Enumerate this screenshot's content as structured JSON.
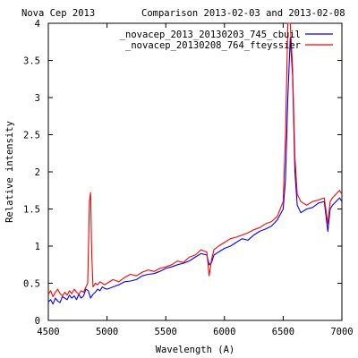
{
  "chart_data": {
    "type": "line",
    "title_left": "Nova Cep 2013",
    "title_right": "Comparison 2013-02-03 and  2013-02-08",
    "xlabel": "Wavelength (A)",
    "ylabel": "Relative intensity",
    "xlim": [
      4500,
      7000
    ],
    "ylim": [
      0,
      4
    ],
    "x_ticks": [
      4500,
      5000,
      5500,
      6000,
      6500,
      7000
    ],
    "x_tick_labels": [
      "4500",
      "5000",
      "5500",
      "6000",
      "6500",
      "7000"
    ],
    "y_ticks": [
      0,
      0.5,
      1,
      1.5,
      2,
      2.5,
      3,
      3.5,
      4
    ],
    "y_tick_labels": [
      "0",
      "0.5",
      "1",
      "1.5",
      "2",
      "2.5",
      "3",
      "3.5",
      "4"
    ],
    "grid": false,
    "legend_position": "top-right",
    "series": [
      {
        "name": "_novacep_2013_20130203_745_cbuil",
        "color": "#0000ff",
        "x": [
          4500,
          4520,
          4540,
          4560,
          4580,
          4600,
          4620,
          4640,
          4660,
          4680,
          4700,
          4720,
          4740,
          4760,
          4780,
          4800,
          4820,
          4840,
          4860,
          4880,
          4900,
          4920,
          4940,
          4960,
          4980,
          5000,
          5050,
          5100,
          5150,
          5200,
          5250,
          5300,
          5350,
          5400,
          5450,
          5500,
          5550,
          5600,
          5650,
          5700,
          5750,
          5800,
          5850,
          5870,
          5890,
          5910,
          5950,
          6000,
          6050,
          6100,
          6150,
          6200,
          6250,
          6300,
          6350,
          6400,
          6450,
          6500,
          6520,
          6540,
          6560,
          6580,
          6600,
          6620,
          6650,
          6700,
          6750,
          6800,
          6850,
          6880,
          6900,
          6920,
          6950,
          6980,
          7000
        ],
        "y": [
          0.25,
          0.28,
          0.22,
          0.3,
          0.26,
          0.24,
          0.32,
          0.3,
          0.28,
          0.34,
          0.3,
          0.33,
          0.28,
          0.35,
          0.3,
          0.33,
          0.42,
          0.4,
          0.3,
          0.35,
          0.38,
          0.42,
          0.4,
          0.45,
          0.43,
          0.42,
          0.45,
          0.48,
          0.52,
          0.53,
          0.55,
          0.6,
          0.62,
          0.63,
          0.66,
          0.7,
          0.72,
          0.75,
          0.77,
          0.8,
          0.85,
          0.9,
          0.88,
          0.75,
          0.78,
          0.88,
          0.92,
          0.97,
          1.0,
          1.05,
          1.1,
          1.08,
          1.15,
          1.2,
          1.23,
          1.27,
          1.35,
          1.5,
          1.9,
          3.0,
          3.8,
          3.3,
          2.0,
          1.55,
          1.45,
          1.5,
          1.52,
          1.58,
          1.6,
          1.2,
          1.5,
          1.55,
          1.6,
          1.65,
          1.6
        ]
      },
      {
        "name": "_novacep_20130208_764_fteyssier",
        "color": "#ff0000",
        "x": [
          4500,
          4520,
          4540,
          4560,
          4580,
          4600,
          4620,
          4640,
          4660,
          4680,
          4700,
          4720,
          4740,
          4760,
          4780,
          4800,
          4820,
          4835,
          4850,
          4860,
          4870,
          4880,
          4900,
          4920,
          4940,
          4960,
          4980,
          5000,
          5050,
          5100,
          5150,
          5200,
          5250,
          5300,
          5350,
          5400,
          5450,
          5500,
          5550,
          5600,
          5650,
          5700,
          5750,
          5800,
          5850,
          5870,
          5890,
          5910,
          5950,
          6000,
          6050,
          6100,
          6150,
          6200,
          6250,
          6300,
          6350,
          6400,
          6450,
          6500,
          6520,
          6540,
          6560,
          6580,
          6600,
          6620,
          6650,
          6700,
          6750,
          6800,
          6850,
          6880,
          6900,
          6920,
          6950,
          6980,
          7000
        ],
        "y": [
          0.35,
          0.4,
          0.32,
          0.38,
          0.42,
          0.36,
          0.33,
          0.38,
          0.34,
          0.4,
          0.36,
          0.42,
          0.38,
          0.35,
          0.4,
          0.38,
          0.45,
          0.5,
          1.6,
          1.72,
          0.9,
          0.45,
          0.5,
          0.48,
          0.52,
          0.5,
          0.48,
          0.5,
          0.55,
          0.52,
          0.58,
          0.62,
          0.6,
          0.65,
          0.68,
          0.66,
          0.7,
          0.72,
          0.75,
          0.8,
          0.78,
          0.85,
          0.88,
          0.95,
          0.92,
          0.6,
          0.82,
          0.95,
          1.0,
          1.05,
          1.1,
          1.12,
          1.15,
          1.18,
          1.22,
          1.25,
          1.3,
          1.33,
          1.4,
          1.6,
          2.5,
          4.0,
          4.0,
          3.4,
          2.2,
          1.7,
          1.6,
          1.55,
          1.6,
          1.62,
          1.65,
          1.3,
          1.6,
          1.65,
          1.7,
          1.75,
          1.7
        ]
      }
    ]
  }
}
